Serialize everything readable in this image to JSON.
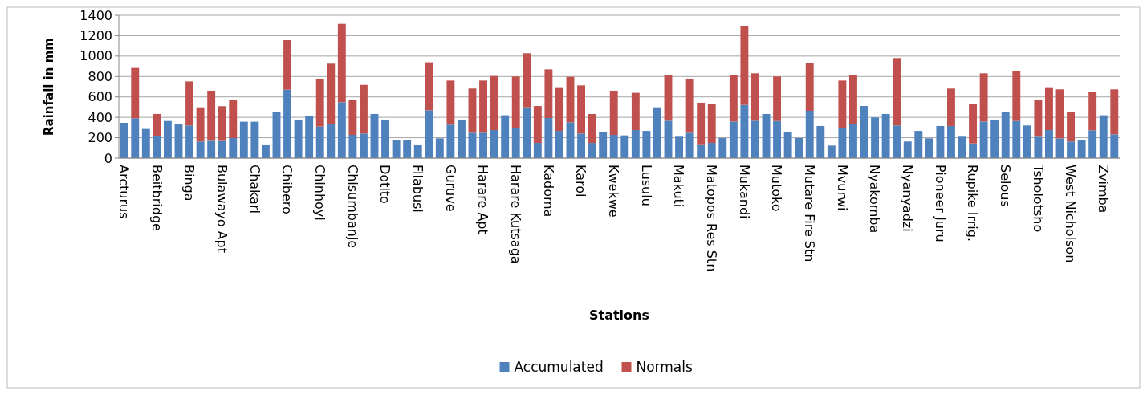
{
  "chart_data": {
    "type": "bar",
    "stacked": true,
    "xlabel": "Stations",
    "ylabel": "Rainfall in mm",
    "categories": [
      "Arcturus",
      null,
      null,
      "Beitbridge",
      null,
      null,
      "Binga",
      null,
      null,
      "Bulawayo Apt",
      null,
      null,
      "Chakari",
      null,
      null,
      "Chibero",
      null,
      null,
      "Chinhoyi",
      null,
      null,
      "Chisumbanje",
      null,
      null,
      "Dotito",
      null,
      null,
      "Filabusi",
      null,
      null,
      "Guruve",
      null,
      null,
      "Harare Apt",
      null,
      null,
      "Harare Kutsaga",
      null,
      null,
      "Kadoma",
      null,
      null,
      "Karoi",
      null,
      null,
      "Kwekwe",
      null,
      null,
      "Lusulu",
      null,
      null,
      "Makuti",
      null,
      null,
      "Matopos Res Stn",
      null,
      null,
      "Mukandi",
      null,
      null,
      "Mutoko",
      null,
      null,
      "Mutare Fire Stn",
      null,
      null,
      "Mvurwi",
      null,
      null,
      "Nyakomba",
      null,
      null,
      "Nyanyadzi",
      null,
      null,
      "Pioneer Juru",
      null,
      null,
      "Rupike Irrig.",
      null,
      null,
      "Selous",
      null,
      null,
      "Tsholotsho",
      null,
      null,
      "West Nicholson",
      null,
      null,
      "Zvimba",
      null
    ],
    "series": [
      {
        "name": "Accumulated",
        "color": "#4f81bd",
        "values": [
          346,
          391,
          286,
          220,
          364,
          333,
          320,
          163,
          170,
          168,
          197,
          357,
          357,
          134,
          454,
          671,
          378,
          409,
          309,
          330,
          548,
          228,
          241,
          433,
          378,
          178,
          178,
          134,
          469,
          194,
          328,
          378,
          249,
          249,
          275,
          420,
          299,
          498,
          149,
          393,
          267,
          351,
          241,
          149,
          257,
          228,
          223,
          275,
          267,
          498,
          367,
          210,
          249,
          136,
          149,
          197,
          359,
          522,
          367,
          433,
          364,
          257,
          197,
          464,
          315,
          123,
          299,
          336,
          511,
          399,
          433,
          320,
          163,
          267,
          194,
          315,
          315,
          210,
          144,
          359,
          378,
          451,
          364,
          320,
          210,
          275,
          194,
          163,
          181,
          273,
          420,
          233
        ]
      },
      {
        "name": "Normals",
        "color": "#c0504d",
        "values": [
          null,
          493,
          null,
          213,
          null,
          null,
          432,
          335,
          491,
          341,
          377,
          null,
          null,
          null,
          null,
          485,
          null,
          null,
          464,
          596,
          768,
          346,
          477,
          null,
          null,
          null,
          null,
          null,
          470,
          null,
          432,
          null,
          433,
          511,
          530,
          null,
          501,
          530,
          362,
          477,
          428,
          446,
          472,
          284,
          null,
          433,
          null,
          365,
          null,
          null,
          451,
          null,
          524,
          407,
          381,
          null,
          459,
          768,
          464,
          null,
          436,
          null,
          null,
          464,
          null,
          null,
          461,
          479,
          null,
          null,
          null,
          661,
          null,
          null,
          null,
          null,
          367,
          null,
          386,
          472,
          null,
          null,
          493,
          null,
          364,
          420,
          480,
          288,
          null,
          375,
          null,
          441
        ]
      }
    ],
    "ylim": [
      0,
      1400
    ],
    "yticks": [
      0,
      200,
      400,
      600,
      800,
      1000,
      1200,
      1400
    ],
    "grid": "y",
    "legend": "bottom"
  }
}
